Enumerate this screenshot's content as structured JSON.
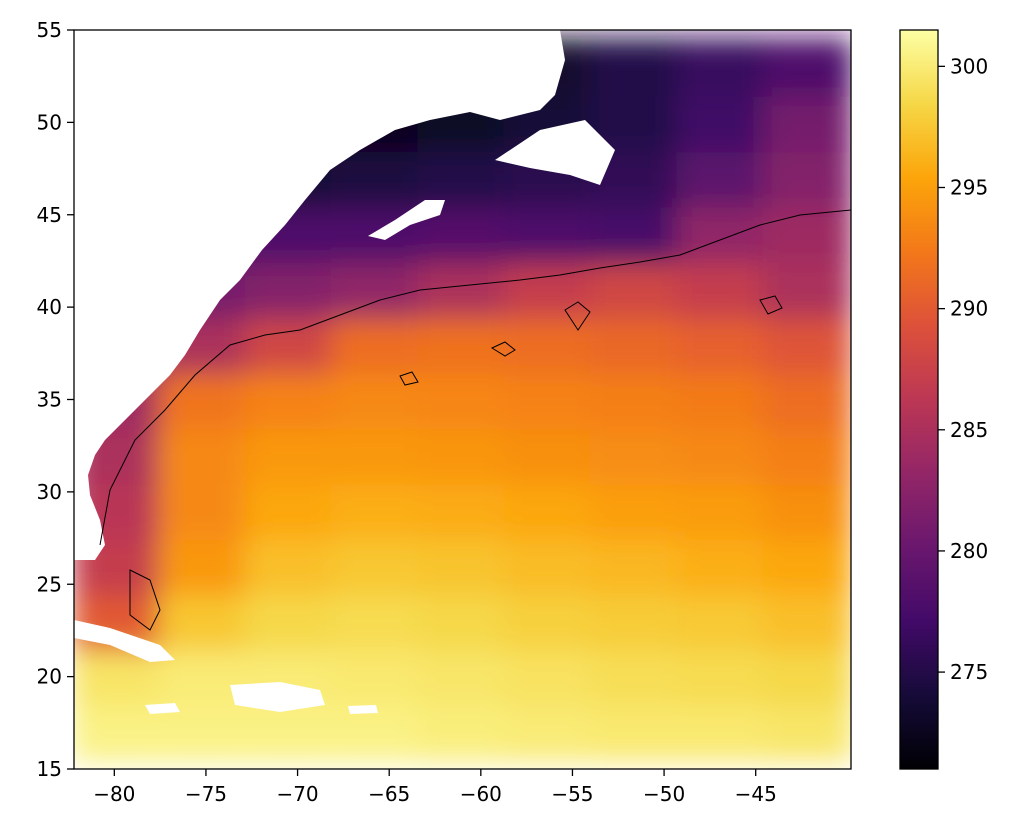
{
  "chart_data": {
    "type": "heatmap",
    "title": "",
    "xlabel": "",
    "ylabel": "",
    "xlim": [
      -82.2,
      -39.8
    ],
    "ylim": [
      15,
      55
    ],
    "x_ticks": [
      -80,
      -75,
      -70,
      -65,
      -60,
      -55,
      -50,
      -45
    ],
    "x_tick_labels": [
      "−80",
      "−75",
      "−70",
      "−65",
      "−60",
      "−55",
      "−50",
      "−45"
    ],
    "y_ticks": [
      15,
      20,
      25,
      30,
      35,
      40,
      45,
      50,
      55
    ],
    "y_tick_labels": [
      "15",
      "20",
      "25",
      "30",
      "35",
      "40",
      "45",
      "50",
      "55"
    ],
    "colormap": "inferno",
    "colorbar": {
      "min": 271,
      "max": 301.5,
      "ticks": [
        275,
        280,
        285,
        290,
        295,
        300
      ],
      "tick_labels": [
        "275",
        "280",
        "285",
        "290",
        "295",
        "300"
      ]
    },
    "land_color": "#ffffff",
    "contour_level": 283,
    "contour_color": "#000000",
    "approximate_field_description": "Sea surface temperature field: ~300 south of 20N, ~296-298 around 25N, ~293-294 at 30-35N, ~291 near 38N, ~283-286 near 41N shelf, ~276-280 at 43-47N, ~272-274 around Gulf of St. Lawrence and Labrador coast",
    "field_samples": [
      {
        "lat": 17,
        "values": [
          300.5,
          300.5,
          300.5,
          300.5,
          300.2,
          300.0,
          299.8,
          299.8,
          299.6
        ]
      },
      {
        "lat": 20,
        "values": [
          299.5,
          300.0,
          300.0,
          299.8,
          299.6,
          299.3,
          299.0,
          298.8,
          298.5
        ]
      },
      {
        "lat": 23,
        "values": [
          290.0,
          297.5,
          298.5,
          298.8,
          298.5,
          298.0,
          297.8,
          297.6,
          297.0
        ]
      },
      {
        "lat": 26,
        "values": [
          287.0,
          294.5,
          297.0,
          297.5,
          297.3,
          296.8,
          296.5,
          296.0,
          295.5
        ]
      },
      {
        "lat": 29,
        "values": [
          286.0,
          293.5,
          295.5,
          296.0,
          295.8,
          295.5,
          295.0,
          294.8,
          294.0
        ]
      },
      {
        "lat": 32,
        "values": [
          285.0,
          293.5,
          294.5,
          294.5,
          294.3,
          294.0,
          293.8,
          293.5,
          292.8
        ]
      },
      {
        "lat": 35,
        "values": [
          284.0,
          292.0,
          293.0,
          293.5,
          293.3,
          293.0,
          292.8,
          292.5,
          291.5
        ]
      },
      {
        "lat": 38,
        "values": [
          282.0,
          285.0,
          288.0,
          291.5,
          291.8,
          291.5,
          291.0,
          290.5,
          289.5
        ]
      },
      {
        "lat": 41,
        "values": [
          279.0,
          281.0,
          282.0,
          283.0,
          285.0,
          287.0,
          288.0,
          287.0,
          285.0
        ]
      },
      {
        "lat": 44,
        "values": [
          277.0,
          277.5,
          278.0,
          278.0,
          278.5,
          278.0,
          277.5,
          283.0,
          284.0
        ]
      },
      {
        "lat": 47,
        "values": [
          274.0,
          274.0,
          274.0,
          274.5,
          275.0,
          275.5,
          276.0,
          279.0,
          282.0
        ]
      },
      {
        "lat": 50,
        "values": [
          272.0,
          272.0,
          272.0,
          272.5,
          273.0,
          274.0,
          275.0,
          277.0,
          281.0
        ]
      },
      {
        "lat": 53,
        "values": [
          272.0,
          272.0,
          272.0,
          272.0,
          272.5,
          273.5,
          275.0,
          276.5,
          278.0
        ]
      }
    ]
  }
}
